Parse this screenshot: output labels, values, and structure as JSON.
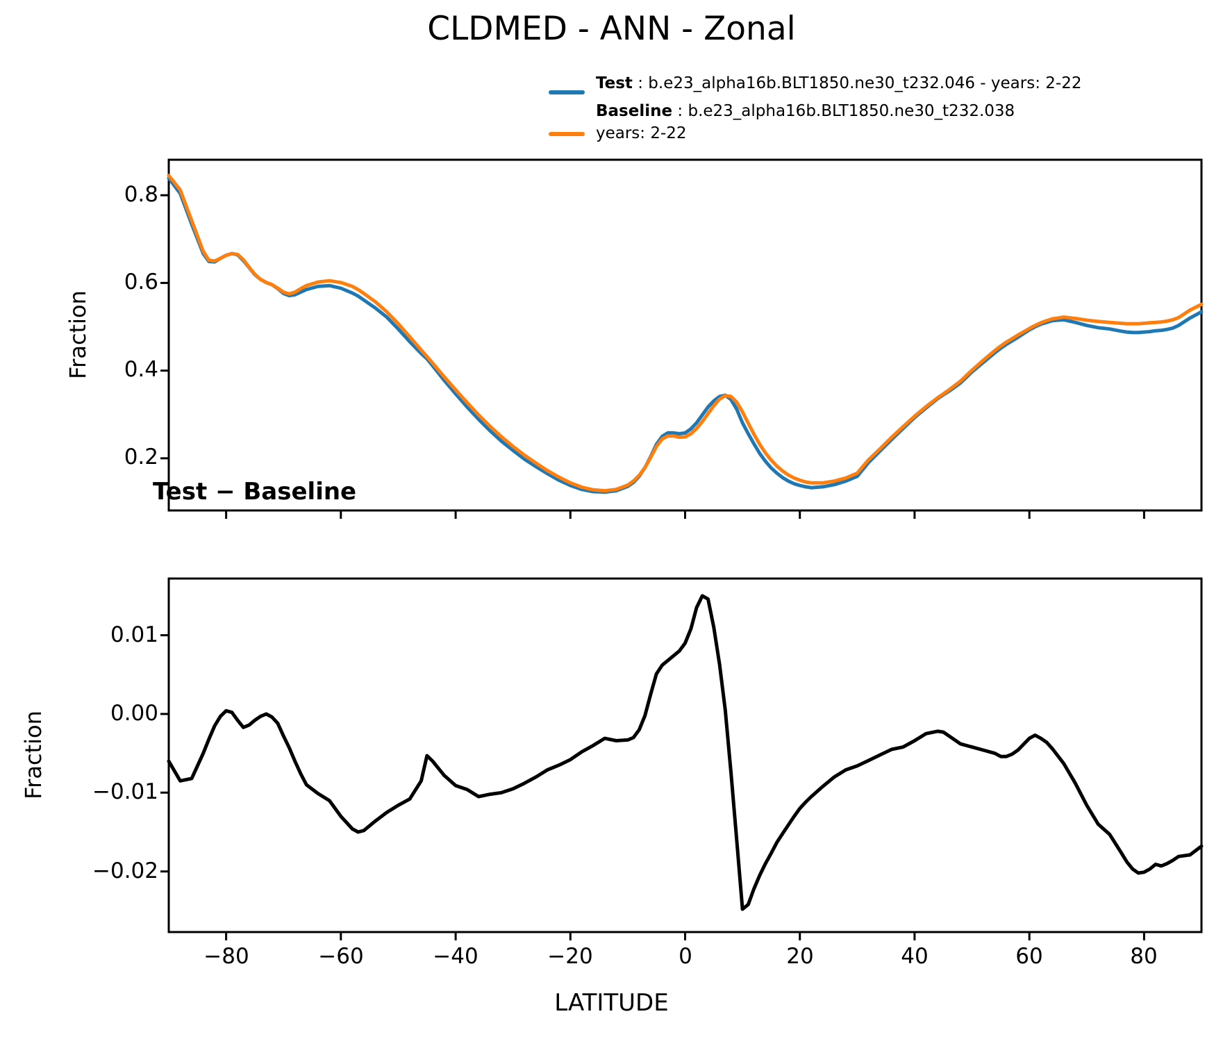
{
  "figure": {
    "title": "CLDMED - ANN - Zonal",
    "background": "#ffffff"
  },
  "legend": {
    "items": [
      {
        "name": "Test",
        "sep": " : ",
        "label": "b.e23_alpha16b.BLT1850.ne30_t232.046 - years: 2-22",
        "label_line2": "",
        "color": "#1f77b4"
      },
      {
        "name": "Baseline",
        "sep": " : ",
        "label": "b.e23_alpha16b.BLT1850.ne30_t232.038",
        "label_line2": "years: 2-22",
        "color": "#ff7f0e"
      }
    ]
  },
  "chart_data": [
    {
      "type": "line",
      "title": "CLDMED - ANN - Zonal",
      "ylabel": "Fraction",
      "xlabel": "",
      "legend_position": "upper-right-above-axes",
      "grid": false,
      "xlim": [
        -90,
        90
      ],
      "ylim": [
        0.081,
        0.881
      ],
      "xticks": [
        -80,
        -60,
        -40,
        -20,
        0,
        20,
        40,
        60,
        80
      ],
      "yticks": [
        0.8,
        0.6,
        0.4,
        0.2
      ],
      "ytick_labels": [
        "0.8",
        "0.6",
        "0.4",
        "0.2"
      ],
      "x": [
        -90,
        -88,
        -86,
        -84,
        -83,
        -82,
        -81,
        -80,
        -79,
        -78,
        -77,
        -76,
        -75,
        -74,
        -73,
        -72,
        -71,
        -70,
        -69,
        -68,
        -67,
        -66,
        -64,
        -62,
        -60,
        -58,
        -57,
        -56,
        -54,
        -52,
        -50,
        -48,
        -46,
        -45,
        -44,
        -42,
        -40,
        -38,
        -36,
        -34,
        -32,
        -30,
        -28,
        -26,
        -24,
        -22,
        -20,
        -18,
        -16,
        -14,
        -12,
        -10,
        -9,
        -8,
        -7,
        -6,
        -5,
        -4,
        -3,
        -2,
        -1,
        0,
        1,
        2,
        3,
        4,
        5,
        6,
        7,
        8,
        9,
        10,
        11,
        12,
        13,
        14,
        15,
        16,
        17,
        18,
        19,
        20,
        21,
        22,
        24,
        26,
        28,
        30,
        32,
        34,
        36,
        38,
        40,
        42,
        44,
        45,
        46,
        48,
        50,
        52,
        54,
        55,
        56,
        57,
        58,
        60,
        61,
        62,
        63,
        64,
        66,
        68,
        70,
        72,
        74,
        76,
        77,
        78,
        79,
        80,
        81,
        82,
        83,
        84,
        85,
        86,
        88,
        90
      ],
      "series": [
        {
          "name": "Test",
          "color": "#1f77b4",
          "values": [
            0.839,
            0.804,
            0.734,
            0.667,
            0.649,
            0.648,
            0.656,
            0.663,
            0.667,
            0.664,
            0.651,
            0.635,
            0.619,
            0.608,
            0.601,
            0.596,
            0.587,
            0.576,
            0.571,
            0.573,
            0.579,
            0.585,
            0.592,
            0.594,
            0.588,
            0.577,
            0.57,
            0.561,
            0.543,
            0.522,
            0.495,
            0.466,
            0.439,
            0.427,
            0.411,
            0.378,
            0.347,
            0.317,
            0.289,
            0.263,
            0.239,
            0.218,
            0.198,
            0.181,
            0.165,
            0.15,
            0.138,
            0.129,
            0.124,
            0.123,
            0.126,
            0.136,
            0.145,
            0.159,
            0.179,
            0.204,
            0.232,
            0.25,
            0.258,
            0.258,
            0.256,
            0.258,
            0.267,
            0.281,
            0.299,
            0.317,
            0.331,
            0.341,
            0.344,
            0.334,
            0.312,
            0.281,
            0.256,
            0.233,
            0.211,
            0.193,
            0.178,
            0.166,
            0.156,
            0.148,
            0.142,
            0.138,
            0.135,
            0.133,
            0.135,
            0.14,
            0.148,
            0.159,
            0.191,
            0.217,
            0.243,
            0.268,
            0.293,
            0.315,
            0.336,
            0.345,
            0.353,
            0.372,
            0.397,
            0.419,
            0.441,
            0.451,
            0.46,
            0.468,
            0.476,
            0.493,
            0.5,
            0.506,
            0.51,
            0.514,
            0.516,
            0.51,
            0.503,
            0.498,
            0.495,
            0.49,
            0.488,
            0.487,
            0.487,
            0.488,
            0.489,
            0.491,
            0.492,
            0.494,
            0.497,
            0.503,
            0.52,
            0.534
          ]
        },
        {
          "name": "Baseline",
          "color": "#ff7f0e",
          "values": [
            0.845,
            0.812,
            0.742,
            0.672,
            0.652,
            0.65,
            0.656,
            0.663,
            0.667,
            0.665,
            0.653,
            0.636,
            0.62,
            0.608,
            0.601,
            0.596,
            0.588,
            0.579,
            0.575,
            0.579,
            0.587,
            0.594,
            0.602,
            0.605,
            0.601,
            0.592,
            0.585,
            0.576,
            0.557,
            0.534,
            0.507,
            0.477,
            0.447,
            0.432,
            0.417,
            0.386,
            0.356,
            0.327,
            0.299,
            0.273,
            0.249,
            0.227,
            0.207,
            0.189,
            0.172,
            0.157,
            0.144,
            0.134,
            0.128,
            0.126,
            0.129,
            0.139,
            0.148,
            0.161,
            0.179,
            0.202,
            0.227,
            0.244,
            0.251,
            0.251,
            0.248,
            0.249,
            0.256,
            0.268,
            0.284,
            0.302,
            0.32,
            0.335,
            0.343,
            0.341,
            0.328,
            0.306,
            0.28,
            0.255,
            0.232,
            0.212,
            0.196,
            0.182,
            0.171,
            0.162,
            0.155,
            0.15,
            0.146,
            0.144,
            0.144,
            0.148,
            0.155,
            0.166,
            0.197,
            0.222,
            0.248,
            0.272,
            0.296,
            0.318,
            0.338,
            0.347,
            0.356,
            0.376,
            0.401,
            0.424,
            0.446,
            0.456,
            0.465,
            0.473,
            0.481,
            0.496,
            0.503,
            0.509,
            0.514,
            0.518,
            0.522,
            0.519,
            0.515,
            0.512,
            0.51,
            0.508,
            0.507,
            0.507,
            0.507,
            0.508,
            0.509,
            0.51,
            0.511,
            0.513,
            0.516,
            0.521,
            0.538,
            0.551
          ]
        }
      ]
    },
    {
      "type": "line",
      "title": "Test − Baseline",
      "ylabel": "Fraction",
      "xlabel": "LATITUDE",
      "grid": false,
      "xlim": [
        -90,
        90
      ],
      "ylim": [
        -0.0277,
        0.0172
      ],
      "xticks": [
        -80,
        -60,
        -40,
        -20,
        0,
        20,
        40,
        60,
        80
      ],
      "xtick_labels": [
        "−80",
        "−60",
        "−40",
        "−20",
        "0",
        "20",
        "40",
        "60",
        "80"
      ],
      "yticks": [
        0.01,
        0.0,
        -0.01,
        -0.02
      ],
      "ytick_labels": [
        "0.01",
        "0.00",
        "−0.01",
        "−0.02"
      ],
      "x": [
        -90,
        -88,
        -86,
        -84,
        -83,
        -82,
        -81,
        -80,
        -79,
        -78,
        -77,
        -76,
        -75,
        -74,
        -73,
        -72,
        -71,
        -70,
        -69,
        -68,
        -67,
        -66,
        -64,
        -62,
        -60,
        -58,
        -57,
        -56,
        -54,
        -52,
        -50,
        -48,
        -46,
        -45,
        -44,
        -42,
        -40,
        -38,
        -36,
        -34,
        -32,
        -30,
        -28,
        -26,
        -24,
        -22,
        -20,
        -18,
        -16,
        -14,
        -12,
        -10,
        -9,
        -8,
        -7,
        -6,
        -5,
        -4,
        -3,
        -2,
        -1,
        0,
        1,
        2,
        3,
        4,
        5,
        6,
        7,
        8,
        9,
        10,
        11,
        12,
        13,
        14,
        15,
        16,
        17,
        18,
        19,
        20,
        21,
        22,
        24,
        26,
        28,
        30,
        32,
        34,
        36,
        38,
        40,
        42,
        44,
        45,
        46,
        48,
        50,
        52,
        54,
        55,
        56,
        57,
        58,
        60,
        61,
        62,
        63,
        64,
        66,
        68,
        70,
        72,
        74,
        76,
        77,
        78,
        79,
        80,
        81,
        82,
        83,
        84,
        85,
        86,
        88,
        90
      ],
      "series": [
        {
          "name": "Test - Baseline",
          "color": "#000000",
          "values": [
            -0.006,
            -0.0085,
            -0.0082,
            -0.005,
            -0.0032,
            -0.0015,
            -0.0003,
            0.0004,
            0.0002,
            -0.0008,
            -0.0017,
            -0.0014,
            -0.0008,
            -0.0003,
            0.0,
            -0.0004,
            -0.0012,
            -0.0028,
            -0.0043,
            -0.006,
            -0.0076,
            -0.009,
            -0.0101,
            -0.011,
            -0.013,
            -0.0146,
            -0.015,
            -0.0148,
            -0.0136,
            -0.0125,
            -0.0116,
            -0.0108,
            -0.0085,
            -0.0053,
            -0.006,
            -0.0078,
            -0.0091,
            -0.0096,
            -0.0105,
            -0.0102,
            -0.01,
            -0.0095,
            -0.0088,
            -0.008,
            -0.0071,
            -0.0065,
            -0.0058,
            -0.0048,
            -0.004,
            -0.0031,
            -0.0034,
            -0.0033,
            -0.003,
            -0.002,
            -0.0002,
            0.0025,
            0.0051,
            0.0062,
            0.0068,
            0.0074,
            0.008,
            0.009,
            0.0108,
            0.0135,
            0.015,
            0.0146,
            0.011,
            0.0063,
            0.0005,
            -0.0075,
            -0.016,
            -0.0248,
            -0.0242,
            -0.0222,
            -0.0205,
            -0.019,
            -0.0177,
            -0.0163,
            -0.0152,
            -0.0141,
            -0.013,
            -0.012,
            -0.0112,
            -0.0105,
            -0.0092,
            -0.008,
            -0.0071,
            -0.0066,
            -0.0059,
            -0.0052,
            -0.0045,
            -0.0042,
            -0.0034,
            -0.0025,
            -0.0022,
            -0.0023,
            -0.0028,
            -0.0038,
            -0.0042,
            -0.0046,
            -0.005,
            -0.0054,
            -0.0054,
            -0.0051,
            -0.0046,
            -0.0031,
            -0.0027,
            -0.0031,
            -0.0036,
            -0.0044,
            -0.0063,
            -0.0088,
            -0.0116,
            -0.014,
            -0.0153,
            -0.0176,
            -0.0188,
            -0.0197,
            -0.0202,
            -0.0201,
            -0.0197,
            -0.0191,
            -0.0193,
            -0.019,
            -0.0186,
            -0.0181,
            -0.0179,
            -0.0168
          ]
        }
      ]
    }
  ]
}
